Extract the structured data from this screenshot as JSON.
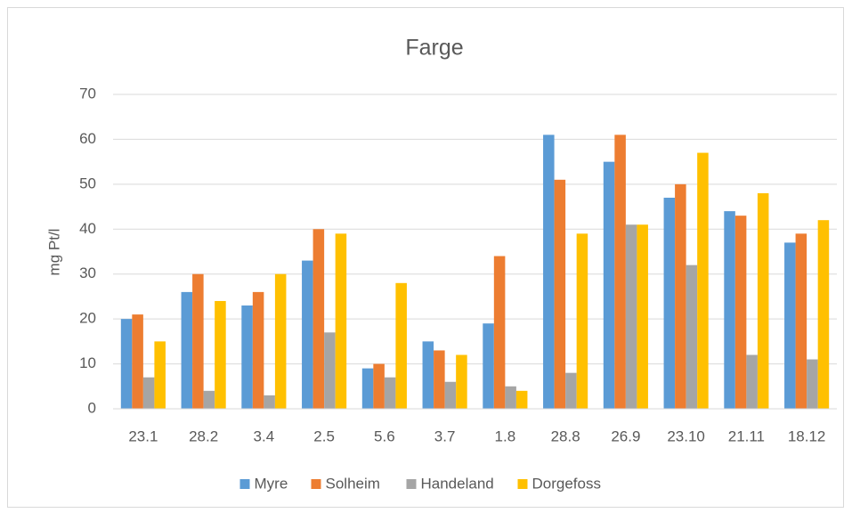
{
  "chart_data": {
    "type": "bar",
    "title": "Farge",
    "y_label": "mg Pt/l",
    "categories": [
      "23.1",
      "28.2",
      "3.4",
      "2.5",
      "5.6",
      "3.7",
      "1.8",
      "28.8",
      "26.9",
      "23.10",
      "21.11",
      "18.12"
    ],
    "series": [
      {
        "name": "Myre",
        "color": "#5b9bd5",
        "values": [
          20,
          26,
          23,
          33,
          9,
          15,
          19,
          61,
          55,
          47,
          44,
          37
        ]
      },
      {
        "name": "Solheim",
        "color": "#ed7d31",
        "values": [
          21,
          30,
          26,
          40,
          10,
          13,
          34,
          51,
          61,
          50,
          43,
          39
        ]
      },
      {
        "name": "Handeland",
        "color": "#a5a5a5",
        "values": [
          7,
          4,
          3,
          17,
          7,
          6,
          5,
          8,
          41,
          32,
          12,
          11
        ]
      },
      {
        "name": "Dorgefoss",
        "color": "#ffc000",
        "values": [
          15,
          24,
          30,
          39,
          28,
          12,
          4,
          39,
          41,
          57,
          48,
          42
        ]
      }
    ],
    "ylim": [
      0,
      70
    ],
    "yticks": [
      0,
      10,
      20,
      30,
      40,
      50,
      60,
      70
    ],
    "grid": true,
    "legend": "bottom"
  }
}
